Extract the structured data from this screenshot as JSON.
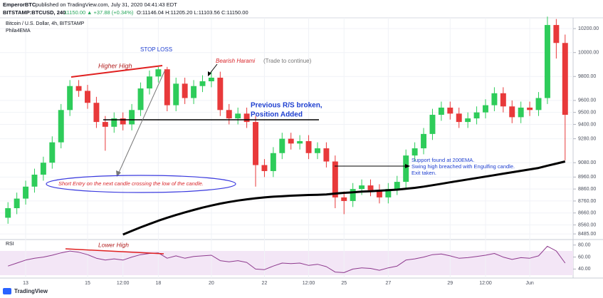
{
  "header": {
    "author": "EmperorBTC",
    "published": "published on TradingView.com, July 31, 2020 04:41:43 EDT",
    "symbol": "BITSTAMP:BTCUSD, 240",
    "last": "11150.00",
    "change": "▲ +37.88 (+0.34%)",
    "ohlc": "O:11146.04 H:11205.20 L:11103.56 C:11150.00"
  },
  "footer": {
    "brand": "TradingView"
  },
  "chart_data": {
    "type": "candlestick",
    "title": "Bitcoin / U.S. Dollar, 4h, BITSTAMP",
    "indicator": "Phila4EMA",
    "rsi_label": "RSI",
    "up_color": "#2ecc5a",
    "down_color": "#e8393a",
    "ema_color": "#000000",
    "rsi_color": "#8e3a8e",
    "grid": true,
    "categories": [
      null,
      null,
      "13",
      null,
      null,
      null,
      null,
      null,
      null,
      "15",
      null,
      null,
      null,
      "12:00",
      null,
      null,
      null,
      "18",
      null,
      null,
      null,
      null,
      null,
      "20",
      null,
      null,
      null,
      null,
      null,
      "22",
      null,
      null,
      null,
      null,
      "12:00",
      null,
      null,
      null,
      "25",
      null,
      null,
      null,
      null,
      "27",
      null,
      null,
      null,
      null,
      null,
      null,
      "29",
      null,
      null,
      null,
      "12:00",
      null,
      null,
      null,
      null,
      "Jun",
      null,
      null,
      null,
      null
    ],
    "open": [
      8620,
      8700,
      8780,
      8880,
      8980,
      9080,
      9250,
      9520,
      9720,
      9680,
      9580,
      9420,
      9380,
      9450,
      9400,
      9520,
      9700,
      9800,
      9860,
      9560,
      9740,
      9620,
      9720,
      9760,
      9790,
      9520,
      9450,
      9490,
      9420,
      9060,
      9010,
      9160,
      9280,
      9240,
      9260,
      9160,
      9200,
      9090,
      8790,
      8760,
      8860,
      8890,
      8850,
      8790,
      8860,
      8920,
      9140,
      9200,
      9320,
      9480,
      9540,
      9490,
      9420,
      9450,
      9500,
      9560,
      9660,
      9550,
      9460,
      9540,
      9520,
      9620,
      10230,
      10080
    ],
    "high": [
      8750,
      8830,
      8930,
      9030,
      9130,
      9300,
      9570,
      9770,
      9770,
      9730,
      9630,
      9470,
      9500,
      9500,
      9570,
      9750,
      9850,
      9880,
      9880,
      9790,
      9790,
      9770,
      9810,
      9840,
      9840,
      9570,
      9540,
      9540,
      9470,
      9110,
      9210,
      9330,
      9330,
      9310,
      9310,
      9250,
      9250,
      9140,
      8840,
      8910,
      8940,
      8940,
      8900,
      8910,
      8970,
      9190,
      9250,
      9370,
      9530,
      9590,
      9590,
      9540,
      9500,
      9550,
      9610,
      9710,
      9710,
      9600,
      9590,
      9590,
      9670,
      10300,
      10280,
      10150
    ],
    "low": [
      8570,
      8650,
      8730,
      8830,
      8930,
      9030,
      9200,
      9470,
      9630,
      9530,
      9370,
      9180,
      9330,
      9350,
      9350,
      9470,
      9650,
      9750,
      9510,
      9510,
      9570,
      9570,
      9670,
      9710,
      9470,
      9400,
      9400,
      9370,
      8880,
      8960,
      8960,
      9110,
      9190,
      9190,
      9110,
      9110,
      9040,
      8700,
      8650,
      8710,
      8810,
      8800,
      8740,
      8740,
      8810,
      8870,
      9090,
      9150,
      9270,
      9430,
      9440,
      9370,
      9370,
      9400,
      9450,
      9510,
      9500,
      9410,
      9410,
      9470,
      9470,
      9570,
      9950,
      9100
    ],
    "close": [
      8700,
      8780,
      8880,
      8980,
      9080,
      9250,
      9520,
      9720,
      9680,
      9580,
      9420,
      9380,
      9450,
      9400,
      9520,
      9700,
      9800,
      9860,
      9560,
      9740,
      9620,
      9720,
      9760,
      9790,
      9520,
      9450,
      9490,
      9420,
      9060,
      9010,
      9160,
      9280,
      9240,
      9260,
      9160,
      9200,
      9090,
      8790,
      8760,
      8860,
      8890,
      8850,
      8790,
      8860,
      8920,
      9140,
      9200,
      9320,
      9480,
      9540,
      9490,
      9420,
      9450,
      9500,
      9560,
      9660,
      9550,
      9460,
      9540,
      9520,
      9620,
      10230,
      10080,
      9480
    ],
    "ema": [
      null,
      null,
      null,
      null,
      null,
      null,
      null,
      null,
      null,
      null,
      null,
      null,
      null,
      8480,
      8510,
      8540,
      8568,
      8595,
      8620,
      8643,
      8665,
      8685,
      8705,
      8722,
      8738,
      8752,
      8764,
      8774,
      8783,
      8790,
      8796,
      8800,
      8804,
      8807,
      8810,
      8812,
      8815,
      8822,
      8828,
      8833,
      8838,
      8842,
      8846,
      8850,
      8855,
      8862,
      8870,
      8880,
      8892,
      8904,
      8916,
      8928,
      8940,
      8952,
      8964,
      8976,
      8988,
      9000,
      9012,
      9024,
      9036,
      9055,
      9072,
      9090
    ],
    "rsi": [
      45,
      50,
      55,
      58,
      60,
      63,
      67,
      70,
      68,
      64,
      58,
      55,
      57,
      55,
      60,
      64,
      66,
      67,
      58,
      62,
      58,
      61,
      62,
      63,
      54,
      52,
      54,
      51,
      40,
      39,
      45,
      50,
      49,
      50,
      46,
      48,
      44,
      35,
      34,
      40,
      42,
      41,
      38,
      42,
      45,
      55,
      57,
      60,
      64,
      65,
      62,
      58,
      59,
      61,
      63,
      66,
      60,
      56,
      59,
      58,
      62,
      78,
      70,
      50
    ],
    "ylim": [
      8444,
      10290
    ],
    "yticks": [
      {
        "value": 10200,
        "label": "10200.00"
      },
      {
        "value": 10000,
        "label": "10000.00"
      },
      {
        "value": 9800,
        "label": "9800.00"
      },
      {
        "value": 9600,
        "label": "9600.00"
      },
      {
        "value": 9500,
        "label": "9500.00"
      },
      {
        "value": 9400,
        "label": "9400.00"
      },
      {
        "value": 9280,
        "label": "9280.00"
      },
      {
        "value": 9080,
        "label": "9080.00"
      },
      {
        "value": 8960,
        "label": "8960.00"
      },
      {
        "value": 8860,
        "label": "8860.00"
      },
      {
        "value": 8760,
        "label": "8760.00"
      },
      {
        "value": 8660,
        "label": "8660.00"
      },
      {
        "value": 8560,
        "label": "8560.00"
      },
      {
        "value": 8485,
        "label": "8485.00"
      }
    ],
    "rsi_ylim": [
      25,
      88
    ],
    "rsi_yticks": [
      {
        "value": 80,
        "label": "80.00"
      },
      {
        "value": 60,
        "label": "60.00"
      },
      {
        "value": 40,
        "label": "40.00"
      }
    ],
    "annotations": [
      "Higher High",
      "STOP LOSS",
      "Bearish Harami",
      "(Trade to continue)",
      "Previous R/S broken,",
      "Position Added",
      "Short Entry on the next candle crossing the low of the candle.",
      "Support found at 200EMA.",
      "Swing high breached with Engulfing candle.",
      "Exit taken.",
      "Lower High"
    ]
  }
}
